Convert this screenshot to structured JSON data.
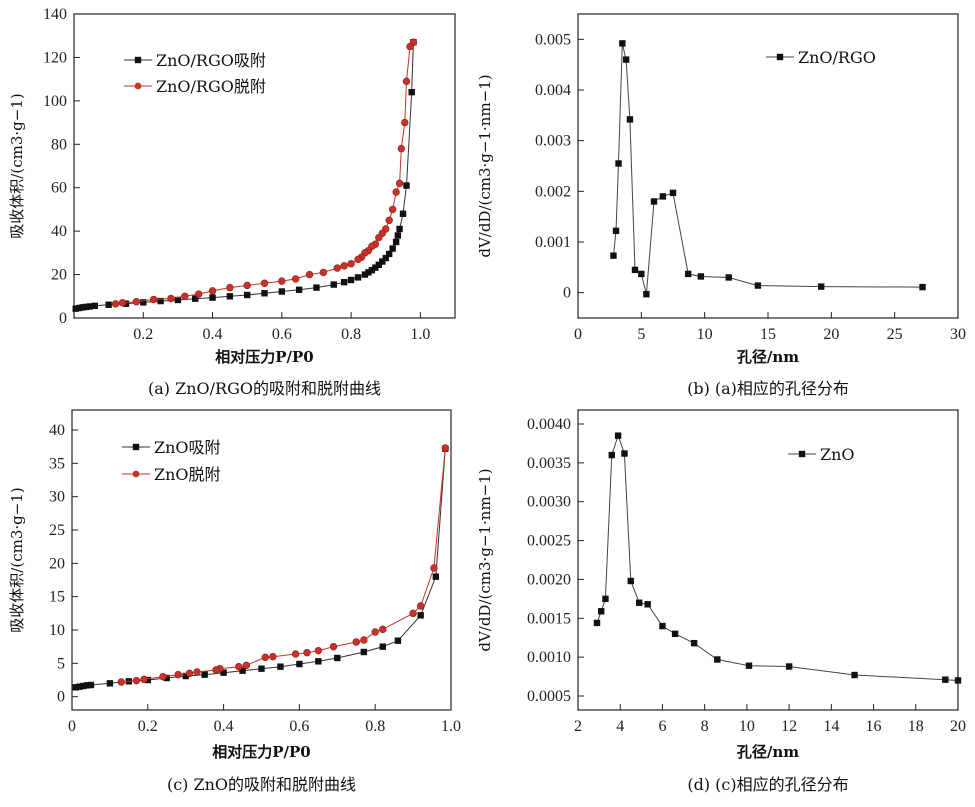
{
  "chart_data": [
    {
      "id": "a",
      "type": "line",
      "caption": "(a) ZnO/RGO的吸附和脱附曲线",
      "xlabel": "相对压力P/P0",
      "ylabel": "吸收体积/(cm3·g−1)",
      "xlim": [
        0,
        1.1
      ],
      "ylim": [
        0,
        140
      ],
      "xticks": [
        0.2,
        0.4,
        0.6,
        0.8,
        1.0
      ],
      "xtick_labels": [
        "0.2",
        "0.4",
        "0.6",
        "0.8",
        "1.0"
      ],
      "yticks": [
        0,
        20,
        40,
        60,
        80,
        100,
        120,
        140
      ],
      "ytick_labels": [
        "0",
        "20",
        "40",
        "60",
        "80",
        "100",
        "120",
        "140"
      ],
      "legend_position": "top-left",
      "series": [
        {
          "name": "ZnO/RGO吸附",
          "color": "#111111",
          "marker": "square",
          "x": [
            0.005,
            0.015,
            0.025,
            0.035,
            0.045,
            0.06,
            0.1,
            0.15,
            0.2,
            0.25,
            0.3,
            0.35,
            0.4,
            0.45,
            0.5,
            0.55,
            0.6,
            0.65,
            0.7,
            0.75,
            0.78,
            0.8,
            0.82,
            0.84,
            0.85,
            0.86,
            0.87,
            0.88,
            0.89,
            0.9,
            0.91,
            0.92,
            0.93,
            0.935,
            0.94,
            0.95,
            0.96,
            0.975,
            0.98
          ],
          "y": [
            4.3,
            4.6,
            4.9,
            5.1,
            5.3,
            5.6,
            6.1,
            6.6,
            7.2,
            7.8,
            8.3,
            8.9,
            9.4,
            10,
            10.6,
            11.4,
            12.2,
            13,
            14,
            15.4,
            16.5,
            17.5,
            18.7,
            20,
            21,
            22,
            23.2,
            24.5,
            26,
            27.6,
            29.5,
            32,
            35,
            38,
            41,
            48,
            61,
            104,
            127
          ]
        },
        {
          "name": "ZnO/RGO脱附",
          "color": "#c83228",
          "marker": "circle",
          "x": [
            0.98,
            0.97,
            0.96,
            0.955,
            0.945,
            0.94,
            0.93,
            0.92,
            0.91,
            0.9,
            0.89,
            0.88,
            0.87,
            0.86,
            0.85,
            0.84,
            0.83,
            0.82,
            0.8,
            0.78,
            0.76,
            0.72,
            0.68,
            0.64,
            0.6,
            0.55,
            0.5,
            0.45,
            0.4,
            0.36,
            0.32,
            0.28,
            0.23,
            0.18,
            0.14,
            0.12
          ],
          "y": [
            127,
            125,
            109,
            90,
            78,
            62,
            58,
            50,
            45,
            41,
            39,
            37,
            34,
            33,
            31,
            30,
            28,
            27,
            25,
            24,
            23,
            21,
            20,
            18,
            17,
            16,
            15,
            14,
            12.5,
            11,
            10,
            9,
            8.5,
            7.5,
            7,
            6.5
          ]
        }
      ]
    },
    {
      "id": "b",
      "type": "line",
      "caption": "(b) (a)相应的孔径分布",
      "xlabel": "孔径/nm",
      "ylabel": "dV/dD/(cm3·g−1·nm−1)",
      "xlim": [
        0,
        30
      ],
      "ylim": [
        -0.0005,
        0.0055
      ],
      "xticks": [
        0,
        5,
        10,
        15,
        20,
        25,
        30
      ],
      "xtick_labels": [
        "0",
        "5",
        "10",
        "15",
        "20",
        "25",
        "30"
      ],
      "yticks": [
        0,
        0.001,
        0.002,
        0.003,
        0.004,
        0.005
      ],
      "ytick_labels": [
        "0",
        "0.001",
        "0.002",
        "0.003",
        "0.004",
        "0.005"
      ],
      "legend_position": "top-right",
      "series": [
        {
          "name": "ZnO/RGO",
          "color": "#444444",
          "marker": "square",
          "x": [
            2.8,
            3.0,
            3.2,
            3.5,
            3.8,
            4.1,
            4.5,
            5.0,
            5.4,
            6.0,
            6.7,
            7.5,
            8.7,
            9.7,
            11.9,
            14.2,
            19.2,
            27.2
          ],
          "y": [
            0.00073,
            0.00122,
            0.00255,
            0.00492,
            0.0046,
            0.00342,
            0.00045,
            0.00037,
            -3e-05,
            0.0018,
            0.0019,
            0.00197,
            0.00037,
            0.00032,
            0.0003,
            0.00014,
            0.00012,
            0.00011
          ]
        }
      ]
    },
    {
      "id": "c",
      "type": "line",
      "caption": "(c) ZnO的吸附和脱附曲线",
      "xlabel": "相对压力P/P0",
      "ylabel": "吸收体积/(cm3·g−1)",
      "xlim": [
        0,
        1.0
      ],
      "ylim": [
        -2,
        43
      ],
      "xticks": [
        0,
        0.2,
        0.4,
        0.6,
        0.8,
        1.0
      ],
      "xtick_labels": [
        "0",
        "0.2",
        "0.4",
        "0.6",
        "0.8",
        "1.0"
      ],
      "yticks": [
        0,
        5,
        10,
        15,
        20,
        25,
        30,
        35,
        40
      ],
      "ytick_labels": [
        "0",
        "5",
        "10",
        "15",
        "20",
        "25",
        "30",
        "35",
        "40"
      ],
      "legend_position": "top-left",
      "series": [
        {
          "name": "ZnO吸附",
          "color": "#111111",
          "marker": "square",
          "x": [
            0.01,
            0.02,
            0.03,
            0.04,
            0.05,
            0.1,
            0.15,
            0.2,
            0.25,
            0.3,
            0.35,
            0.4,
            0.45,
            0.5,
            0.55,
            0.6,
            0.65,
            0.7,
            0.77,
            0.82,
            0.86,
            0.92,
            0.96,
            0.985
          ],
          "y": [
            1.4,
            1.5,
            1.6,
            1.7,
            1.75,
            2,
            2.3,
            2.5,
            2.8,
            3.1,
            3.3,
            3.6,
            3.9,
            4.2,
            4.5,
            4.9,
            5.3,
            5.8,
            6.7,
            7.5,
            8.4,
            12.2,
            18,
            37.2
          ]
        },
        {
          "name": "ZnO脱附",
          "color": "#c83228",
          "marker": "circle",
          "x": [
            0.985,
            0.955,
            0.92,
            0.9,
            0.82,
            0.8,
            0.77,
            0.75,
            0.69,
            0.65,
            0.62,
            0.59,
            0.53,
            0.51,
            0.46,
            0.44,
            0.39,
            0.38,
            0.33,
            0.31,
            0.28,
            0.24,
            0.19,
            0.17,
            0.13
          ],
          "y": [
            37.3,
            19.3,
            13.6,
            12.5,
            10.1,
            9.7,
            8.5,
            8.2,
            7.5,
            6.9,
            6.6,
            6.4,
            6,
            5.9,
            4.7,
            4.5,
            4.2,
            4,
            3.7,
            3.5,
            3.3,
            3,
            2.6,
            2.4,
            2.2
          ]
        }
      ]
    },
    {
      "id": "d",
      "type": "line",
      "caption": "(d) (c)相应的孔径分布",
      "xlabel": "孔径/nm",
      "ylabel": "dV/dD/(cm3·g−1·nm−1)",
      "xlim": [
        2,
        20
      ],
      "ylim": [
        0.00032,
        0.00418
      ],
      "xticks": [
        2,
        4,
        6,
        8,
        10,
        12,
        14,
        16,
        18,
        20
      ],
      "xtick_labels": [
        "2",
        "4",
        "6",
        "8",
        "10",
        "12",
        "14",
        "16",
        "18",
        "20"
      ],
      "yticks": [
        0.0005,
        0.001,
        0.0015,
        0.002,
        0.0025,
        0.003,
        0.0035,
        0.004
      ],
      "ytick_labels": [
        "0.0005",
        "0.0010",
        "0.0015",
        "0.0020",
        "0.0025",
        "0.0030",
        "0.0035",
        "0.0040"
      ],
      "legend_position": "top-right",
      "series": [
        {
          "name": "ZnO",
          "color": "#444444",
          "marker": "square",
          "x": [
            2.9,
            3.1,
            3.3,
            3.6,
            3.9,
            4.2,
            4.5,
            4.9,
            5.3,
            6.0,
            6.6,
            7.5,
            8.6,
            10.1,
            12.0,
            15.1,
            19.4,
            20.0
          ],
          "y": [
            0.00144,
            0.00159,
            0.00175,
            0.0036,
            0.00385,
            0.00362,
            0.00198,
            0.0017,
            0.00168,
            0.0014,
            0.0013,
            0.00118,
            0.00097,
            0.00089,
            0.00088,
            0.00077,
            0.00071,
            0.0007
          ]
        }
      ]
    }
  ]
}
